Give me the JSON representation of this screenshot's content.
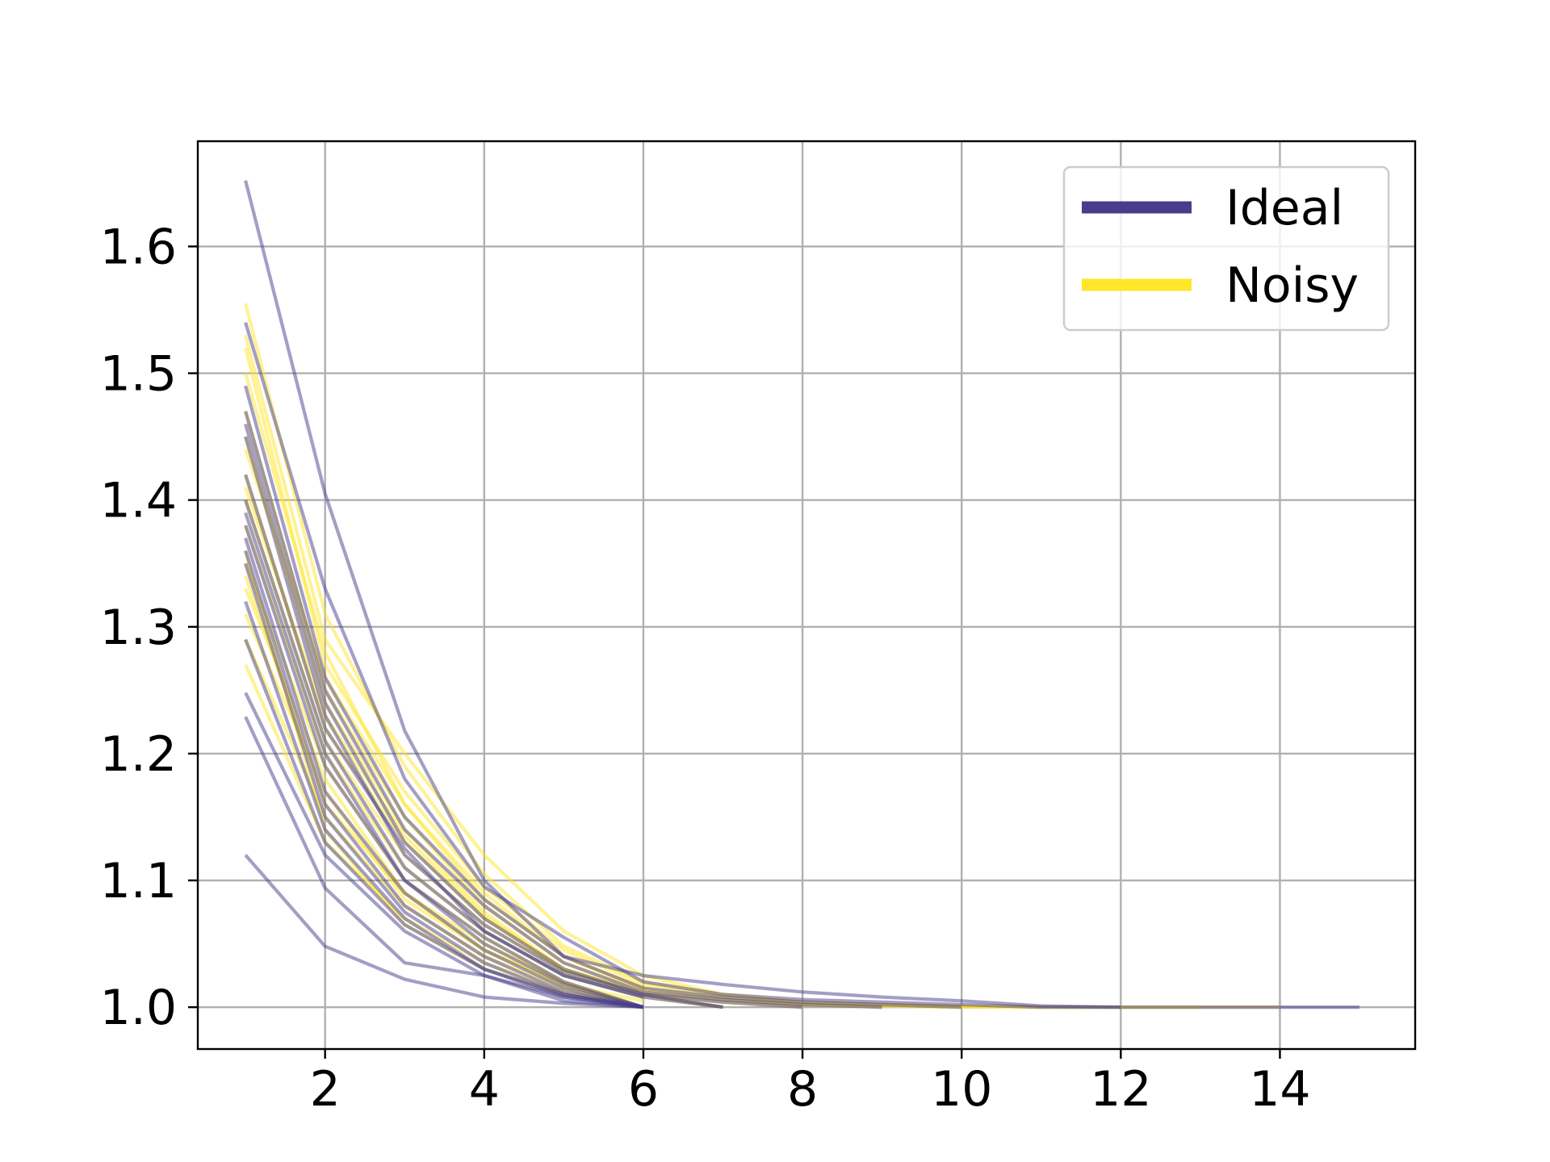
{
  "colors": {
    "ideal": "#483D8B",
    "noisy": "#FFE629",
    "grid": "#b0b0b0",
    "legend_border": "#cccccc"
  },
  "legend": {
    "placement": "top-right",
    "entries": [
      {
        "label": "Ideal",
        "color": "#483D8B"
      },
      {
        "label": "Noisy",
        "color": "#FFE629"
      }
    ]
  },
  "chart_data": {
    "type": "line",
    "title": "",
    "xlabel": "",
    "ylabel": "",
    "xlim": [
      0.4,
      15.7
    ],
    "ylim": [
      0.967,
      1.683
    ],
    "grid": true,
    "x_ticks": [
      2,
      4,
      6,
      8,
      10,
      12,
      14
    ],
    "x_tick_labels": [
      "2",
      "4",
      "6",
      "8",
      "10",
      "12",
      "14"
    ],
    "y_ticks": [
      1.0,
      1.1,
      1.2,
      1.3,
      1.4,
      1.5,
      1.6
    ],
    "y_tick_labels": [
      "1.0",
      "1.1",
      "1.2",
      "1.3",
      "1.4",
      "1.5",
      "1.6"
    ],
    "series_groups": [
      {
        "name": "Noisy",
        "color": "#FFE629",
        "lines": [
          {
            "x": [
              1,
              2,
              3,
              4,
              5,
              6,
              7,
              8,
              9,
              10,
              11,
              12,
              13,
              14
            ],
            "y": [
              1.555,
              1.31,
              1.19,
              1.105,
              1.048,
              1.02,
              1.01,
              1.004,
              1.002,
              1.001,
              1.0,
              1.0,
              1.0,
              1.0
            ]
          },
          {
            "x": [
              1,
              2,
              3,
              4,
              5,
              6,
              7,
              8,
              9,
              10,
              11,
              12,
              13
            ],
            "y": [
              1.53,
              1.29,
              1.2,
              1.12,
              1.06,
              1.025,
              1.01,
              1.004,
              1.002,
              1.001,
              1.0,
              1.0,
              1.0
            ]
          },
          {
            "x": [
              1,
              2,
              3,
              4,
              5,
              6,
              7,
              8,
              9,
              10,
              11
            ],
            "y": [
              1.52,
              1.27,
              1.17,
              1.095,
              1.045,
              1.018,
              1.008,
              1.003,
              1.001,
              1.0,
              1.0
            ]
          },
          {
            "x": [
              1,
              2,
              3,
              4,
              5,
              6,
              7,
              8,
              9,
              10
            ],
            "y": [
              1.5,
              1.28,
              1.16,
              1.09,
              1.04,
              1.015,
              1.006,
              1.002,
              1.001,
              1.0
            ]
          },
          {
            "x": [
              1,
              2,
              3,
              4,
              5,
              6,
              7,
              8,
              9
            ],
            "y": [
              1.47,
              1.25,
              1.15,
              1.08,
              1.035,
              1.013,
              1.005,
              1.002,
              1.0
            ]
          },
          {
            "x": [
              1,
              2,
              3,
              4,
              5,
              6,
              7,
              8
            ],
            "y": [
              1.45,
              1.24,
              1.14,
              1.075,
              1.03,
              1.012,
              1.004,
              1.0
            ]
          },
          {
            "x": [
              1,
              2,
              3,
              4,
              5,
              6,
              7
            ],
            "y": [
              1.42,
              1.22,
              1.13,
              1.07,
              1.03,
              1.01,
              1.0
            ]
          },
          {
            "x": [
              1,
              2,
              3,
              4,
              5,
              6,
              7
            ],
            "y": [
              1.4,
              1.21,
              1.12,
              1.065,
              1.028,
              1.01,
              1.0
            ]
          },
          {
            "x": [
              1,
              2,
              3,
              4,
              5,
              6,
              7
            ],
            "y": [
              1.38,
              1.2,
              1.11,
              1.06,
              1.025,
              1.008,
              1.0
            ]
          },
          {
            "x": [
              1,
              2,
              3,
              4,
              5,
              6
            ],
            "y": [
              1.35,
              1.19,
              1.1,
              1.055,
              1.02,
              1.0
            ]
          },
          {
            "x": [
              1,
              2,
              3,
              4,
              5,
              6
            ],
            "y": [
              1.33,
              1.18,
              1.09,
              1.05,
              1.02,
              1.0
            ]
          },
          {
            "x": [
              1,
              2,
              3,
              4,
              5,
              6
            ],
            "y": [
              1.31,
              1.17,
              1.085,
              1.045,
              1.018,
              1.0
            ]
          },
          {
            "x": [
              1,
              2,
              3,
              4,
              5,
              6
            ],
            "y": [
              1.29,
              1.15,
              1.08,
              1.04,
              1.015,
              1.0
            ]
          },
          {
            "x": [
              1,
              2,
              3,
              4,
              5,
              6
            ],
            "y": [
              1.27,
              1.13,
              1.07,
              1.035,
              1.012,
              1.0
            ]
          },
          {
            "x": [
              1,
              2,
              3,
              4,
              5,
              6
            ],
            "y": [
              1.44,
              1.26,
              1.16,
              1.085,
              1.04,
              1.015
            ]
          },
          {
            "x": [
              1,
              2,
              3,
              4,
              5,
              6
            ],
            "y": [
              1.36,
              1.14,
              1.065,
              1.03,
              1.01,
              1.0
            ]
          },
          {
            "x": [
              1,
              2,
              3,
              4,
              5,
              6
            ],
            "y": [
              1.41,
              1.23,
              1.135,
              1.072,
              1.03,
              1.01
            ]
          },
          {
            "x": [
              1,
              2,
              3,
              4,
              5,
              6
            ],
            "y": [
              1.34,
              1.16,
              1.09,
              1.045,
              1.018,
              1.005
            ]
          }
        ]
      },
      {
        "name": "Ideal",
        "color": "#483D8B",
        "lines": [
          {
            "x": [
              1,
              2,
              3,
              4,
              5,
              6,
              7,
              8,
              9,
              10,
              11,
              12,
              13,
              14,
              15
            ],
            "y": [
              1.652,
              1.405,
              1.218,
              1.1,
              1.04,
              1.025,
              1.018,
              1.012,
              1.008,
              1.005,
              1.001,
              1.0,
              1.0,
              1.0,
              1.0
            ]
          },
          {
            "x": [
              1,
              2,
              3,
              4,
              5,
              6,
              7,
              8,
              9,
              10,
              11,
              12
            ],
            "y": [
              1.54,
              1.33,
              1.18,
              1.095,
              1.055,
              1.02,
              1.01,
              1.006,
              1.004,
              1.002,
              1.0,
              1.0
            ]
          },
          {
            "x": [
              1,
              2,
              3,
              4,
              5,
              6,
              7,
              8,
              9,
              10
            ],
            "y": [
              1.49,
              1.26,
              1.15,
              1.085,
              1.04,
              1.015,
              1.008,
              1.004,
              1.002,
              1.0
            ]
          },
          {
            "x": [
              1,
              2,
              3,
              4,
              5,
              6,
              7,
              8,
              9
            ],
            "y": [
              1.47,
              1.25,
              1.14,
              1.08,
              1.035,
              1.012,
              1.006,
              1.002,
              1.0
            ]
          },
          {
            "x": [
              1,
              2,
              3,
              4,
              5,
              6,
              7,
              8
            ],
            "y": [
              1.46,
              1.24,
              1.13,
              1.07,
              1.03,
              1.01,
              1.004,
              1.0
            ]
          },
          {
            "x": [
              1,
              2,
              3,
              4,
              5,
              6,
              7
            ],
            "y": [
              1.45,
              1.23,
              1.12,
              1.065,
              1.028,
              1.01,
              1.0
            ]
          },
          {
            "x": [
              1,
              2,
              3,
              4,
              5,
              6,
              7
            ],
            "y": [
              1.4,
              1.21,
              1.11,
              1.06,
              1.025,
              1.008,
              1.0
            ]
          },
          {
            "x": [
              1,
              2,
              3,
              4,
              5,
              6
            ],
            "y": [
              1.39,
              1.2,
              1.1,
              1.055,
              1.02,
              1.0
            ]
          },
          {
            "x": [
              1,
              2,
              3,
              4,
              5,
              6
            ],
            "y": [
              1.38,
              1.19,
              1.1,
              1.05,
              1.018,
              1.0
            ]
          },
          {
            "x": [
              1,
              2,
              3,
              4,
              5,
              6
            ],
            "y": [
              1.37,
              1.17,
              1.09,
              1.045,
              1.015,
              1.0
            ]
          },
          {
            "x": [
              1,
              2,
              3,
              4,
              5,
              6
            ],
            "y": [
              1.36,
              1.16,
              1.08,
              1.04,
              1.012,
              1.0
            ]
          },
          {
            "x": [
              1,
              2,
              3,
              4,
              5,
              6
            ],
            "y": [
              1.35,
              1.15,
              1.075,
              1.035,
              1.01,
              1.0
            ]
          },
          {
            "x": [
              1,
              2,
              3,
              4,
              5,
              6
            ],
            "y": [
              1.32,
              1.14,
              1.07,
              1.03,
              1.01,
              1.0
            ]
          },
          {
            "x": [
              1,
              2,
              3,
              4,
              5,
              6
            ],
            "y": [
              1.29,
              1.13,
              1.065,
              1.03,
              1.008,
              1.0
            ]
          },
          {
            "x": [
              1,
              2,
              3,
              4,
              5,
              6
            ],
            "y": [
              1.248,
              1.12,
              1.06,
              1.025,
              1.005,
              1.0
            ]
          },
          {
            "x": [
              1,
              2,
              3,
              4,
              5,
              6
            ],
            "y": [
              1.229,
              1.094,
              1.035,
              1.025,
              1.008,
              1.0
            ]
          },
          {
            "x": [
              1,
              2,
              3,
              4,
              5,
              6
            ],
            "y": [
              1.12,
              1.048,
              1.022,
              1.008,
              1.003,
              1.0
            ]
          },
          {
            "x": [
              1,
              2,
              3,
              4,
              5,
              6
            ],
            "y": [
              1.42,
              1.22,
              1.125,
              1.06,
              1.025,
              1.008
            ]
          }
        ]
      }
    ]
  }
}
